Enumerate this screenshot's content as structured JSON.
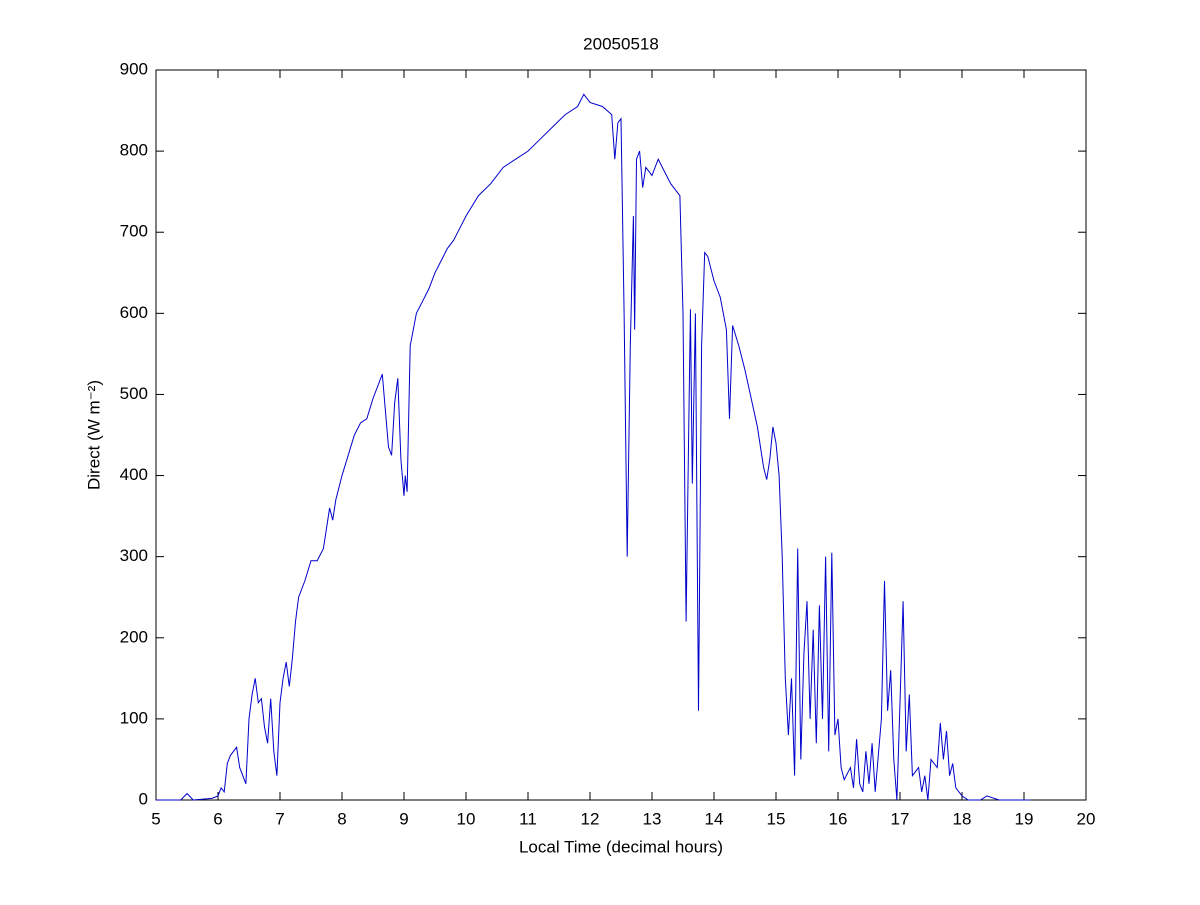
{
  "chart_data": {
    "type": "line",
    "title": "20050518",
    "xlabel": "Local Time (decimal hours)",
    "ylabel": "Direct (W m⁻²)",
    "xlim": [
      5,
      20
    ],
    "xticks": [
      5,
      6,
      7,
      8,
      9,
      10,
      11,
      12,
      13,
      14,
      15,
      16,
      17,
      18,
      19,
      20
    ],
    "ylim": [
      0,
      900
    ],
    "yticks": [
      0,
      100,
      200,
      300,
      400,
      500,
      600,
      700,
      800,
      900
    ],
    "grid": false,
    "series": [
      {
        "name": "Direct",
        "color": "#0000cc",
        "x": [
          5.0,
          5.4,
          5.5,
          5.6,
          5.9,
          6.0,
          6.05,
          6.1,
          6.15,
          6.2,
          6.3,
          6.35,
          6.45,
          6.5,
          6.55,
          6.6,
          6.65,
          6.7,
          6.75,
          6.8,
          6.85,
          6.9,
          6.95,
          7.0,
          7.05,
          7.1,
          7.15,
          7.2,
          7.25,
          7.3,
          7.4,
          7.5,
          7.6,
          7.7,
          7.8,
          7.85,
          7.9,
          8.0,
          8.1,
          8.2,
          8.3,
          8.4,
          8.5,
          8.6,
          8.65,
          8.7,
          8.75,
          8.8,
          8.85,
          8.9,
          8.95,
          9.0,
          9.02,
          9.05,
          9.1,
          9.15,
          9.2,
          9.3,
          9.4,
          9.5,
          9.6,
          9.7,
          9.8,
          9.9,
          10.0,
          10.2,
          10.4,
          10.6,
          10.8,
          11.0,
          11.2,
          11.4,
          11.6,
          11.8,
          11.9,
          12.0,
          12.2,
          12.35,
          12.4,
          12.45,
          12.5,
          12.55,
          12.6,
          12.65,
          12.7,
          12.72,
          12.75,
          12.8,
          12.85,
          12.9,
          13.0,
          13.1,
          13.2,
          13.3,
          13.45,
          13.5,
          13.55,
          13.6,
          13.62,
          13.65,
          13.7,
          13.75,
          13.8,
          13.85,
          13.9,
          14.0,
          14.1,
          14.2,
          14.25,
          14.3,
          14.4,
          14.5,
          14.6,
          14.7,
          14.8,
          14.85,
          14.9,
          14.95,
          15.0,
          15.05,
          15.1,
          15.15,
          15.2,
          15.25,
          15.3,
          15.35,
          15.4,
          15.45,
          15.5,
          15.55,
          15.6,
          15.65,
          15.7,
          15.75,
          15.8,
          15.85,
          15.9,
          15.95,
          16.0,
          16.05,
          16.1,
          16.2,
          16.25,
          16.3,
          16.35,
          16.4,
          16.45,
          16.5,
          16.55,
          16.6,
          16.7,
          16.75,
          16.8,
          16.85,
          16.9,
          16.95,
          17.0,
          17.05,
          17.1,
          17.15,
          17.2,
          17.3,
          17.35,
          17.4,
          17.45,
          17.5,
          17.6,
          17.65,
          17.7,
          17.75,
          17.8,
          17.85,
          17.9,
          18.0,
          18.1,
          18.3,
          18.4,
          18.6,
          19.1
        ],
        "values": [
          0,
          0,
          8,
          0,
          2,
          5,
          15,
          10,
          45,
          55,
          65,
          40,
          20,
          100,
          130,
          150,
          120,
          125,
          90,
          70,
          125,
          60,
          30,
          120,
          150,
          170,
          140,
          175,
          220,
          250,
          270,
          295,
          295,
          310,
          360,
          345,
          370,
          400,
          425,
          450,
          465,
          470,
          495,
          515,
          525,
          480,
          435,
          425,
          490,
          520,
          420,
          375,
          400,
          380,
          560,
          580,
          600,
          615,
          630,
          650,
          665,
          680,
          690,
          705,
          720,
          745,
          760,
          780,
          790,
          800,
          815,
          830,
          845,
          855,
          870,
          860,
          855,
          845,
          790,
          835,
          840,
          600,
          300,
          560,
          720,
          580,
          790,
          800,
          755,
          780,
          770,
          790,
          775,
          760,
          745,
          600,
          220,
          500,
          605,
          390,
          600,
          110,
          560,
          675,
          670,
          640,
          620,
          580,
          470,
          585,
          560,
          530,
          495,
          460,
          410,
          395,
          420,
          460,
          440,
          400,
          300,
          150,
          80,
          150,
          30,
          310,
          50,
          180,
          245,
          100,
          210,
          70,
          240,
          100,
          300,
          60,
          305,
          80,
          100,
          40,
          25,
          40,
          15,
          75,
          20,
          10,
          60,
          20,
          70,
          10,
          100,
          270,
          110,
          160,
          50,
          0,
          120,
          245,
          60,
          130,
          30,
          40,
          10,
          30,
          0,
          50,
          40,
          95,
          50,
          85,
          30,
          45,
          15,
          5,
          0,
          0,
          5,
          0,
          0
        ]
      }
    ]
  }
}
